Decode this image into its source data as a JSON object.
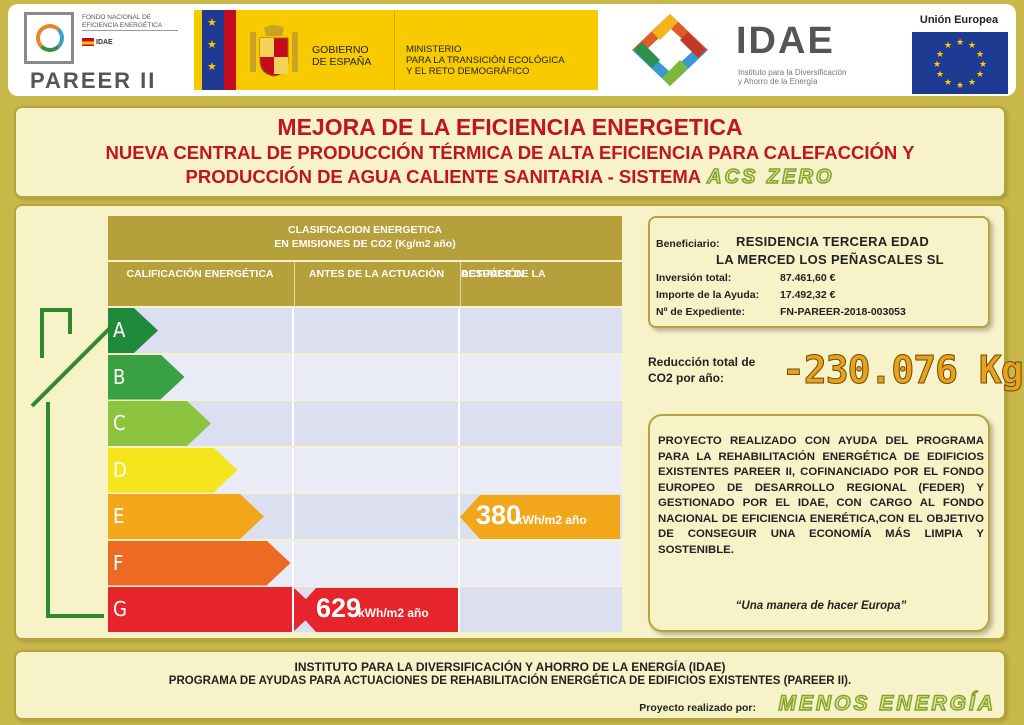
{
  "logos": {
    "fondo_nacional": "FONDO NACIONAL DE EFICIENCIA ENERGÉTICA",
    "idae_mini": "IDAE",
    "pareer": "PAREER II",
    "gobierno": [
      "GOBIERNO",
      "DE ESPAÑA"
    ],
    "ministerio": [
      "MINISTERIO",
      "PARA LA TRANSICIÓN ECOLÓGICA",
      "Y EL RETO DEMOGRÁFICO"
    ],
    "idae_name": "IDAE",
    "idae_sub": [
      "Instituto para la Diversificación",
      "y Ahorro de la Energía"
    ],
    "ue": "Unión Europea"
  },
  "title": {
    "main": "MEJORA DE LA EFICIENCIA ENERGETICA",
    "sub": "NUEVA CENTRAL DE PRODUCCIÓN TÉRMICA DE ALTA EFICIENCIA PARA CALEFACCIÓN Y PRODUCCIÓN DE AGUA CALIENTE SANITARIA - SISTEMA",
    "system": "ACS ZERO"
  },
  "table": {
    "header_title": [
      "CLASIFICACION ENERGETICA",
      "EN EMISIONES DE CO2 (Kg/m2 año)"
    ],
    "col1": "CALIFICACIÓN ENERGÉTICA",
    "col2": "ANTES DE LA ACTUACIÓN",
    "col3": [
      "DESPÚES DE LA",
      "ACTUACIÓN"
    ],
    "classes": [
      "A",
      "B",
      "C",
      "D",
      "E",
      "F",
      "G"
    ],
    "class_colors": [
      "#1f8a3b",
      "#3aa142",
      "#8cc43f",
      "#f4e51c",
      "#f2a71b",
      "#ec6a24",
      "#e5242b"
    ],
    "before": {
      "class": "G",
      "value": "629",
      "unit": "kWh/m2 año",
      "color": "#e5242b"
    },
    "after": {
      "class": "E",
      "value": "380",
      "unit": "kWh/m2 año",
      "color": "#f2a71b"
    }
  },
  "beneficiary": {
    "label": "Beneficiario:",
    "name_line1": "RESIDENCIA TERCERA EDAD",
    "name_line2": "LA MERCED LOS PEÑASCALES SL",
    "investment_label": "Inversión total:",
    "investment": "87.461,60 €",
    "aid_label": "Importe de la Ayuda:",
    "aid": "17.492,32 €",
    "file_label": "Nº de Expediente:",
    "file": "FN-PAREER-2018-003053"
  },
  "reduction": {
    "label": "Reducción total de CO2 por año:",
    "value": "-230.076 Kg"
  },
  "description": {
    "text": "PROYECTO REALIZADO CON AYUDA DEL PROGRAMA PARA LA REHABILITACIÓN ENERGÉTICA DE EDIFICIOS EXISTENTES PAREER II, COFINANCIADO POR EL FONDO EUROPEO DE DESARROLLO REGIONAL (FEDER) Y GESTIONADO POR EL IDAE, CON CARGO AL FONDO NACIONAL DE EFICIENCIA ENERÉTICA,CON EL OBJETIVO DE CONSEGUIR UNA ECONOMÍA MÁS LIMPIA Y SOSTENIBLE.",
    "motto": "“Una manera de hacer Europa”"
  },
  "footer": {
    "line1": "INSTITUTO PARA LA DIVERSIFICACIÓN Y AHORRO DE LA ENERGÍA (IDAE)",
    "line2": "PROGRAMA DE AYUDAS PARA ACTUACIONES DE REHABILITACIÓN ENERGÉTICA DE EDIFICIOS EXISTENTES (PAREER II).",
    "credit": "Proyecto realizado por:",
    "company": "MENOS ENERGÍA"
  }
}
